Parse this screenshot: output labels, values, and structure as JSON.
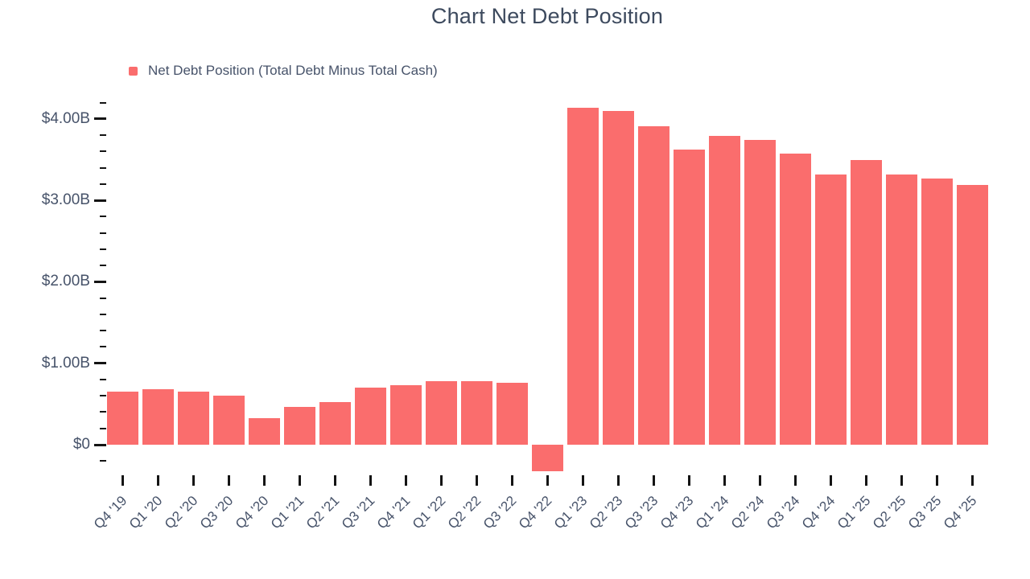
{
  "title": "Chart Net Debt Position",
  "legend": {
    "label": "Net Debt Position (Total Debt Minus Total Cash)"
  },
  "colors": {
    "bar": "#fa6d6d",
    "text": "#47536a",
    "title_text": "#3d4a5e",
    "tick": "#141414"
  },
  "chart_data": {
    "type": "bar",
    "title": "Chart Net Debt Position",
    "series": [
      {
        "name": "Net Debt Position (Total Debt Minus Total Cash)",
        "values": [
          0.65,
          0.68,
          0.65,
          0.6,
          0.33,
          0.46,
          0.52,
          0.7,
          0.73,
          0.78,
          0.78,
          0.76,
          -0.33,
          4.14,
          4.1,
          3.91,
          3.62,
          3.79,
          3.74,
          3.57,
          3.32,
          3.49,
          3.32,
          3.27,
          3.19
        ]
      }
    ],
    "categories": [
      "Q4 '19",
      "Q1 '20",
      "Q2 '20",
      "Q3 '20",
      "Q4 '20",
      "Q1 '21",
      "Q2 '21",
      "Q3 '21",
      "Q4 '21",
      "Q1 '22",
      "Q2 '22",
      "Q3 '22",
      "Q4 '22",
      "Q1 '23",
      "Q2 '23",
      "Q3 '23",
      "Q4 '23",
      "Q1 '24",
      "Q2 '24",
      "Q3 '24",
      "Q4 '24",
      "Q1 '25",
      "Q2 '25",
      "Q3 '25",
      "Q4 '25"
    ],
    "xlabel": "",
    "ylabel": "",
    "unit": "USD billions",
    "y_axis": {
      "major_ticks": [
        {
          "value": 0,
          "label": "$0"
        },
        {
          "value": 1,
          "label": "$1.00B"
        },
        {
          "value": 2,
          "label": "$2.00B"
        },
        {
          "value": 3,
          "label": "$3.00B"
        },
        {
          "value": 4,
          "label": "$4.00B"
        }
      ],
      "minor_step": 0.2,
      "minor_range": [
        -0.2,
        4.2
      ],
      "ylim": [
        -0.4,
        4.25
      ]
    },
    "grid": false,
    "axis_lines": false,
    "legend_position": "top-left",
    "bar_color": "#fa6d6d"
  }
}
